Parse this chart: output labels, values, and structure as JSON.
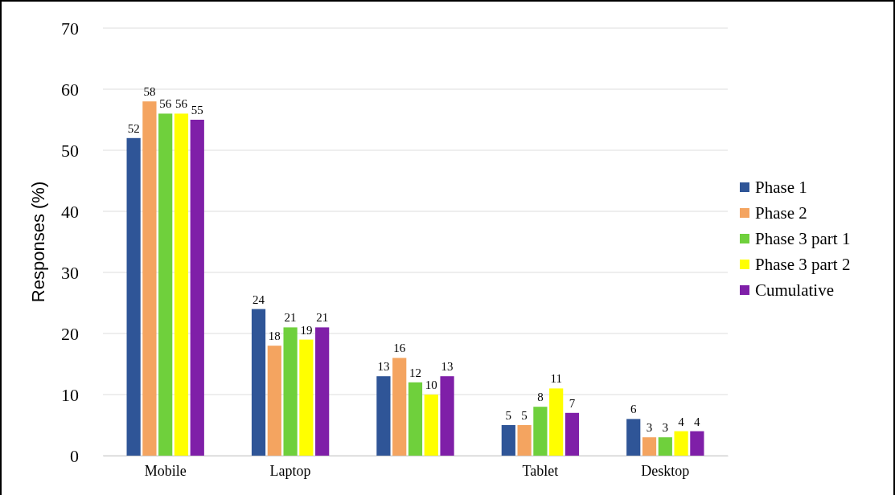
{
  "chart_data": {
    "type": "bar",
    "ylabel": "Responses (%)",
    "categories": [
      "Mobile",
      "Laptop",
      null,
      "Tablet",
      "Desktop"
    ],
    "series": [
      {
        "name": "Phase 1",
        "color": "#2f5597",
        "values": [
          52,
          24,
          13,
          5,
          6
        ]
      },
      {
        "name": "Phase 2",
        "color": "#f4a460",
        "values": [
          58,
          18,
          16,
          5,
          3
        ]
      },
      {
        "name": "Phase 3 part 1",
        "color": "#6fd03c",
        "values": [
          56,
          21,
          12,
          8,
          3
        ]
      },
      {
        "name": "Phase 3 part 2",
        "color": "#ffff00",
        "values": [
          56,
          19,
          10,
          11,
          4
        ]
      },
      {
        "name": "Cumulative",
        "color": "#7f1fa8",
        "values": [
          55,
          21,
          13,
          7,
          4
        ]
      }
    ],
    "ylim": [
      0,
      70
    ],
    "yticks": [
      0,
      10,
      20,
      30,
      40,
      50,
      60,
      70
    ],
    "grid": "y",
    "legend": "right",
    "data_labels": true
  }
}
